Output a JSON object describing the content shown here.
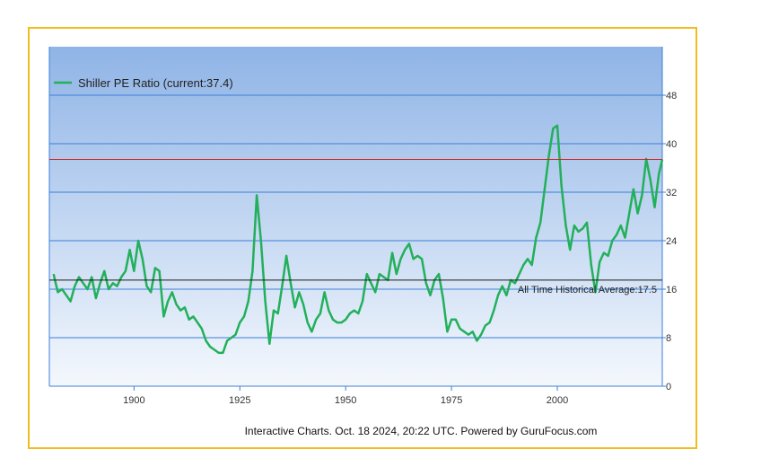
{
  "chart_data": {
    "type": "line",
    "title": "",
    "legend_label": "Shiller PE Ratio (current:37.4)",
    "footer": "Interactive Charts. Oct. 18 2024, 20:22 UTC. Powered by GuruFocus.com",
    "xlabel": "",
    "ylabel": "",
    "xlim": [
      1880,
      2024.8
    ],
    "ylim": [
      0,
      56
    ],
    "x_ticks": [
      1900,
      1925,
      1950,
      1975,
      2000
    ],
    "y_ticks": [
      0,
      8,
      16,
      24,
      32,
      40,
      48
    ],
    "current_value": 37.4,
    "average_value": 17.5,
    "average_label": "All Time Historical Average:17.5",
    "colors": {
      "line": "#22b05a",
      "current_line": "#d21e1e",
      "average_line": "#1a1a1a",
      "grid": "#3c7fd8",
      "plot_top": "#8fb4e6",
      "plot_bottom": "#f4f8fd",
      "border": "#f2bc1e"
    },
    "series": [
      {
        "name": "Shiller PE Ratio",
        "points": [
          [
            1881,
            18.5
          ],
          [
            1882,
            15.5
          ],
          [
            1883,
            16.0
          ],
          [
            1884,
            15.0
          ],
          [
            1885,
            14.0
          ],
          [
            1886,
            16.5
          ],
          [
            1887,
            18.0
          ],
          [
            1888,
            17.0
          ],
          [
            1889,
            16.0
          ],
          [
            1890,
            18.0
          ],
          [
            1891,
            14.5
          ],
          [
            1892,
            17.0
          ],
          [
            1893,
            19.0
          ],
          [
            1894,
            16.0
          ],
          [
            1895,
            17.0
          ],
          [
            1896,
            16.5
          ],
          [
            1897,
            18.0
          ],
          [
            1898,
            19.0
          ],
          [
            1899,
            22.5
          ],
          [
            1900,
            19.0
          ],
          [
            1901,
            24.0
          ],
          [
            1902,
            21.0
          ],
          [
            1903,
            16.5
          ],
          [
            1904,
            15.5
          ],
          [
            1905,
            19.5
          ],
          [
            1906,
            19.0
          ],
          [
            1907,
            11.5
          ],
          [
            1908,
            14.0
          ],
          [
            1909,
            15.5
          ],
          [
            1910,
            13.5
          ],
          [
            1911,
            12.5
          ],
          [
            1912,
            13.0
          ],
          [
            1913,
            11.0
          ],
          [
            1914,
            11.5
          ],
          [
            1915,
            10.5
          ],
          [
            1916,
            9.5
          ],
          [
            1917,
            7.5
          ],
          [
            1918,
            6.5
          ],
          [
            1919,
            6.0
          ],
          [
            1920,
            5.5
          ],
          [
            1921,
            5.5
          ],
          [
            1922,
            7.5
          ],
          [
            1923,
            8.0
          ],
          [
            1924,
            8.5
          ],
          [
            1925,
            10.5
          ],
          [
            1926,
            11.5
          ],
          [
            1927,
            14.0
          ],
          [
            1928,
            19.0
          ],
          [
            1929,
            31.5
          ],
          [
            1930,
            24.0
          ],
          [
            1931,
            14.0
          ],
          [
            1932,
            7.0
          ],
          [
            1933,
            12.5
          ],
          [
            1934,
            12.0
          ],
          [
            1935,
            16.5
          ],
          [
            1936,
            21.5
          ],
          [
            1937,
            17.0
          ],
          [
            1938,
            13.0
          ],
          [
            1939,
            15.5
          ],
          [
            1940,
            13.5
          ],
          [
            1941,
            10.5
          ],
          [
            1942,
            9.0
          ],
          [
            1943,
            11.0
          ],
          [
            1944,
            12.0
          ],
          [
            1945,
            15.5
          ],
          [
            1946,
            12.5
          ],
          [
            1947,
            11.0
          ],
          [
            1948,
            10.5
          ],
          [
            1949,
            10.5
          ],
          [
            1950,
            11.0
          ],
          [
            1951,
            12.0
          ],
          [
            1952,
            12.5
          ],
          [
            1953,
            12.0
          ],
          [
            1954,
            14.0
          ],
          [
            1955,
            18.5
          ],
          [
            1956,
            17.0
          ],
          [
            1957,
            15.5
          ],
          [
            1958,
            18.5
          ],
          [
            1959,
            18.0
          ],
          [
            1960,
            17.5
          ],
          [
            1961,
            22.0
          ],
          [
            1962,
            18.5
          ],
          [
            1963,
            21.0
          ],
          [
            1964,
            22.5
          ],
          [
            1965,
            23.5
          ],
          [
            1966,
            21.0
          ],
          [
            1967,
            21.5
          ],
          [
            1968,
            21.0
          ],
          [
            1969,
            17.0
          ],
          [
            1970,
            15.0
          ],
          [
            1971,
            17.5
          ],
          [
            1972,
            18.5
          ],
          [
            1973,
            14.5
          ],
          [
            1974,
            9.0
          ],
          [
            1975,
            11.0
          ],
          [
            1976,
            11.0
          ],
          [
            1977,
            9.5
          ],
          [
            1978,
            9.0
          ],
          [
            1979,
            8.5
          ],
          [
            1980,
            9.0
          ],
          [
            1981,
            7.5
          ],
          [
            1982,
            8.5
          ],
          [
            1983,
            10.0
          ],
          [
            1984,
            10.5
          ],
          [
            1985,
            12.5
          ],
          [
            1986,
            15.0
          ],
          [
            1987,
            16.5
          ],
          [
            1988,
            15.0
          ],
          [
            1989,
            17.5
          ],
          [
            1990,
            17.0
          ],
          [
            1991,
            18.5
          ],
          [
            1992,
            20.0
          ],
          [
            1993,
            21.0
          ],
          [
            1994,
            20.0
          ],
          [
            1995,
            24.5
          ],
          [
            1996,
            27.0
          ],
          [
            1997,
            32.5
          ],
          [
            1998,
            38.0
          ],
          [
            1999,
            42.5
          ],
          [
            2000,
            43.0
          ],
          [
            2001,
            33.0
          ],
          [
            2002,
            26.5
          ],
          [
            2003,
            22.5
          ],
          [
            2004,
            26.5
          ],
          [
            2005,
            25.5
          ],
          [
            2006,
            26.0
          ],
          [
            2007,
            27.0
          ],
          [
            2008,
            20.0
          ],
          [
            2009,
            15.5
          ],
          [
            2010,
            20.5
          ],
          [
            2011,
            22.0
          ],
          [
            2012,
            21.5
          ],
          [
            2013,
            24.0
          ],
          [
            2014,
            25.0
          ],
          [
            2015,
            26.5
          ],
          [
            2016,
            24.5
          ],
          [
            2017,
            28.5
          ],
          [
            2018,
            32.5
          ],
          [
            2019,
            28.5
          ],
          [
            2020,
            31.5
          ],
          [
            2021,
            37.5
          ],
          [
            2022,
            34.0
          ],
          [
            2023,
            29.5
          ],
          [
            2024,
            35.0
          ],
          [
            2024.8,
            37.4
          ]
        ]
      }
    ]
  }
}
